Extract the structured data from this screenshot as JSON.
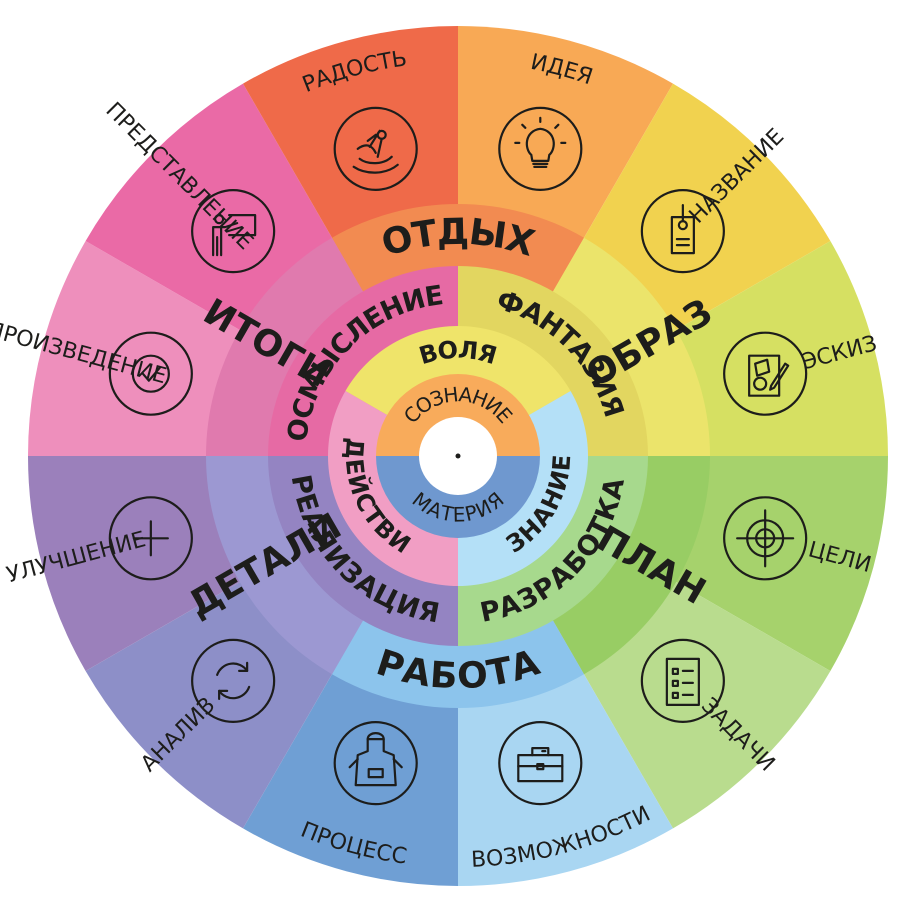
{
  "outer_ring": [
    {
      "label": "ИДЕЯ",
      "color": "#f8a955",
      "icon": "lightbulb-icon"
    },
    {
      "label": "НАЗВАНИЕ",
      "color": "#f1d24f",
      "icon": "tag-icon"
    },
    {
      "label": "ЭСКИЗ",
      "color": "#d6e062",
      "icon": "sketch-icon"
    },
    {
      "label": "ЦЕЛИ",
      "color": "#a6d26c",
      "icon": "target-icon"
    },
    {
      "label": "ЗАДАЧИ",
      "color": "#b9dc8e",
      "icon": "checklist-icon"
    },
    {
      "label": "ВОЗМОЖНОСТИ",
      "color": "#a9d6f2",
      "icon": "toolbox-icon"
    },
    {
      "label": "ПРОЦЕСС",
      "color": "#6f9fd4",
      "icon": "apron-icon"
    },
    {
      "label": "АНАЛИЗ",
      "color": "#8d8fc8",
      "icon": "cycle-arrows-icon"
    },
    {
      "label": "УЛУЧШЕНИЕ",
      "color": "#9b80bb",
      "icon": "plus-icon"
    },
    {
      "label": "ПРОИЗВЕДЕНИЕ",
      "color": "#ee8fbc",
      "icon": "checkmark-icon"
    },
    {
      "label": "ПРЕДСТАВЛЕНИЕ",
      "color": "#ea6aa6",
      "icon": "presenter-icon"
    },
    {
      "label": "РАДОСТЬ",
      "color": "#ef6a49",
      "icon": "kayak-icon"
    }
  ],
  "ring3": [
    {
      "label": "ОТДЫХ",
      "color": "#f28b51"
    },
    {
      "label": "ОБРАЗ",
      "color": "#ebe46b"
    },
    {
      "label": "ПЛАН",
      "color": "#98cd64"
    },
    {
      "label": "РАБОТА",
      "color": "#8cc4ec"
    },
    {
      "label": "ДЕТАЛИ",
      "color": "#9c98d2"
    },
    {
      "label": "ИТОГИ",
      "color": "#e07aae"
    }
  ],
  "ring2": [
    {
      "label": "ФАНТАЗИЯ",
      "color": "#e2d660"
    },
    {
      "label": "РАЗРАБОТКА",
      "color": "#a7d98d"
    },
    {
      "label": "РЕАЛИЗАЦИЯ",
      "color": "#9484c2"
    },
    {
      "label": "ОСМЫСЛЕНИЕ",
      "color": "#e66aa4"
    }
  ],
  "ring1": [
    {
      "label": "ВОЛЯ",
      "color": "#efe46a"
    },
    {
      "label": "ЗНАНИЕ",
      "color": "#b4e0f7"
    },
    {
      "label": "ДЕЙСТВИЕ",
      "color": "#f19ec4"
    }
  ],
  "core": [
    {
      "label": "СОЗНАНИЕ",
      "color": "#f8ab5b"
    },
    {
      "label": "МАТЕРИЯ",
      "color": "#6f98cf"
    }
  ]
}
